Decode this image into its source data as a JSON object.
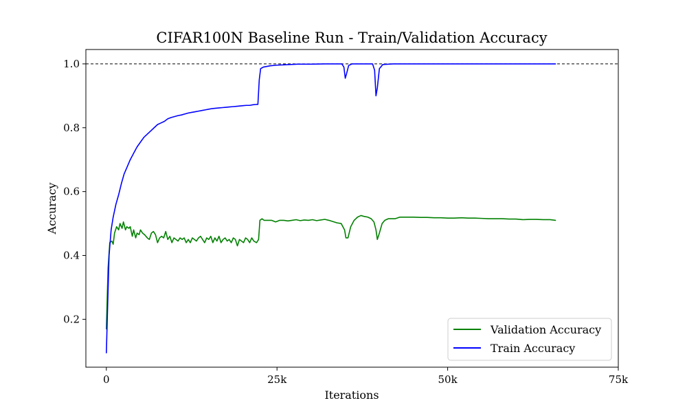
{
  "chart_data": {
    "type": "line",
    "title": "CIFAR100N Baseline Run - Train/Validation Accuracy",
    "xlabel": "Iterations",
    "ylabel": "Accuracy",
    "xlim": [
      -3000,
      75000
    ],
    "ylim": [
      0.05,
      1.045
    ],
    "x_ticks": [
      {
        "value": 0,
        "label": "0"
      },
      {
        "value": 25000,
        "label": "25k"
      },
      {
        "value": 50000,
        "label": "50k"
      },
      {
        "value": 75000,
        "label": "75k"
      }
    ],
    "y_ticks": [
      {
        "value": 0.2,
        "label": "0.2"
      },
      {
        "value": 0.4,
        "label": "0.4"
      },
      {
        "value": 0.6,
        "label": "0.6"
      },
      {
        "value": 0.8,
        "label": "0.8"
      },
      {
        "value": 1.0,
        "label": "1.0"
      }
    ],
    "grid": false,
    "reference_line": {
      "y": 1.0,
      "style": "dashed",
      "color": "#000000"
    },
    "legend": {
      "position": "lower-right"
    },
    "series": [
      {
        "name": "Validation Accuracy",
        "color": "#008000",
        "points": [
          [
            0,
            0.17
          ],
          [
            250,
            0.36
          ],
          [
            500,
            0.44
          ],
          [
            800,
            0.445
          ],
          [
            1000,
            0.435
          ],
          [
            1200,
            0.47
          ],
          [
            1500,
            0.49
          ],
          [
            1800,
            0.48
          ],
          [
            2000,
            0.5
          ],
          [
            2300,
            0.485
          ],
          [
            2500,
            0.505
          ],
          [
            2800,
            0.48
          ],
          [
            3000,
            0.49
          ],
          [
            3300,
            0.485
          ],
          [
            3500,
            0.49
          ],
          [
            3800,
            0.46
          ],
          [
            4000,
            0.48
          ],
          [
            4300,
            0.455
          ],
          [
            4500,
            0.47
          ],
          [
            4800,
            0.465
          ],
          [
            5000,
            0.48
          ],
          [
            5300,
            0.47
          ],
          [
            5600,
            0.465
          ],
          [
            6000,
            0.455
          ],
          [
            6300,
            0.45
          ],
          [
            6600,
            0.47
          ],
          [
            6900,
            0.475
          ],
          [
            7200,
            0.465
          ],
          [
            7500,
            0.44
          ],
          [
            7800,
            0.455
          ],
          [
            8100,
            0.46
          ],
          [
            8400,
            0.455
          ],
          [
            8700,
            0.475
          ],
          [
            9000,
            0.45
          ],
          [
            9300,
            0.46
          ],
          [
            9600,
            0.44
          ],
          [
            9900,
            0.455
          ],
          [
            10200,
            0.45
          ],
          [
            10500,
            0.445
          ],
          [
            10800,
            0.455
          ],
          [
            11100,
            0.45
          ],
          [
            11400,
            0.455
          ],
          [
            11700,
            0.44
          ],
          [
            12000,
            0.45
          ],
          [
            12300,
            0.44
          ],
          [
            12600,
            0.455
          ],
          [
            12900,
            0.45
          ],
          [
            13200,
            0.445
          ],
          [
            13500,
            0.455
          ],
          [
            13800,
            0.46
          ],
          [
            14100,
            0.45
          ],
          [
            14400,
            0.44
          ],
          [
            14700,
            0.455
          ],
          [
            15000,
            0.45
          ],
          [
            15300,
            0.46
          ],
          [
            15600,
            0.44
          ],
          [
            15900,
            0.455
          ],
          [
            16200,
            0.445
          ],
          [
            16500,
            0.46
          ],
          [
            16800,
            0.44
          ],
          [
            17100,
            0.45
          ],
          [
            17400,
            0.455
          ],
          [
            17700,
            0.445
          ],
          [
            18000,
            0.45
          ],
          [
            18300,
            0.44
          ],
          [
            18600,
            0.455
          ],
          [
            18900,
            0.45
          ],
          [
            19200,
            0.43
          ],
          [
            19500,
            0.45
          ],
          [
            19800,
            0.445
          ],
          [
            20100,
            0.44
          ],
          [
            20400,
            0.455
          ],
          [
            20700,
            0.45
          ],
          [
            21000,
            0.44
          ],
          [
            21300,
            0.455
          ],
          [
            21600,
            0.445
          ],
          [
            22000,
            0.44
          ],
          [
            22300,
            0.45
          ],
          [
            22500,
            0.51
          ],
          [
            22800,
            0.515
          ],
          [
            23100,
            0.51
          ],
          [
            23600,
            0.51
          ],
          [
            24200,
            0.51
          ],
          [
            24800,
            0.505
          ],
          [
            25400,
            0.51
          ],
          [
            26000,
            0.51
          ],
          [
            26600,
            0.508
          ],
          [
            27200,
            0.51
          ],
          [
            27800,
            0.512
          ],
          [
            28400,
            0.509
          ],
          [
            29000,
            0.511
          ],
          [
            29600,
            0.51
          ],
          [
            30200,
            0.512
          ],
          [
            30800,
            0.509
          ],
          [
            31400,
            0.511
          ],
          [
            32000,
            0.513
          ],
          [
            32600,
            0.51
          ],
          [
            33200,
            0.506
          ],
          [
            33800,
            0.502
          ],
          [
            34400,
            0.5
          ],
          [
            34900,
            0.48
          ],
          [
            35100,
            0.455
          ],
          [
            35400,
            0.455
          ],
          [
            35800,
            0.49
          ],
          [
            36300,
            0.51
          ],
          [
            36800,
            0.52
          ],
          [
            37300,
            0.525
          ],
          [
            37800,
            0.522
          ],
          [
            38300,
            0.52
          ],
          [
            38800,
            0.515
          ],
          [
            39200,
            0.505
          ],
          [
            39500,
            0.48
          ],
          [
            39700,
            0.45
          ],
          [
            40000,
            0.47
          ],
          [
            40400,
            0.5
          ],
          [
            40800,
            0.51
          ],
          [
            41300,
            0.515
          ],
          [
            41800,
            0.515
          ],
          [
            42300,
            0.515
          ],
          [
            43000,
            0.52
          ],
          [
            44000,
            0.52
          ],
          [
            45000,
            0.52
          ],
          [
            46000,
            0.519
          ],
          [
            47000,
            0.519
          ],
          [
            48000,
            0.518
          ],
          [
            49000,
            0.518
          ],
          [
            50000,
            0.517
          ],
          [
            51000,
            0.517
          ],
          [
            52000,
            0.518
          ],
          [
            53000,
            0.517
          ],
          [
            54000,
            0.517
          ],
          [
            55000,
            0.516
          ],
          [
            56000,
            0.515
          ],
          [
            57000,
            0.515
          ],
          [
            58000,
            0.515
          ],
          [
            59000,
            0.514
          ],
          [
            60000,
            0.514
          ],
          [
            61000,
            0.512
          ],
          [
            62000,
            0.513
          ],
          [
            63000,
            0.513
          ],
          [
            64000,
            0.512
          ],
          [
            65000,
            0.512
          ],
          [
            65800,
            0.51
          ]
        ]
      },
      {
        "name": "Train Accuracy",
        "color": "#0000ff",
        "points": [
          [
            0,
            0.095
          ],
          [
            200,
            0.25
          ],
          [
            400,
            0.4
          ],
          [
            700,
            0.48
          ],
          [
            1000,
            0.52
          ],
          [
            1400,
            0.56
          ],
          [
            1800,
            0.59
          ],
          [
            2200,
            0.625
          ],
          [
            2600,
            0.655
          ],
          [
            3000,
            0.675
          ],
          [
            3500,
            0.7
          ],
          [
            4000,
            0.72
          ],
          [
            4500,
            0.74
          ],
          [
            5000,
            0.755
          ],
          [
            5500,
            0.77
          ],
          [
            6000,
            0.78
          ],
          [
            6500,
            0.79
          ],
          [
            7000,
            0.8
          ],
          [
            7500,
            0.81
          ],
          [
            8000,
            0.815
          ],
          [
            8500,
            0.82
          ],
          [
            9000,
            0.828
          ],
          [
            9500,
            0.832
          ],
          [
            10000,
            0.835
          ],
          [
            10500,
            0.838
          ],
          [
            11000,
            0.84
          ],
          [
            11500,
            0.843
          ],
          [
            12000,
            0.846
          ],
          [
            12500,
            0.848
          ],
          [
            13000,
            0.85
          ],
          [
            13500,
            0.852
          ],
          [
            14000,
            0.854
          ],
          [
            14500,
            0.856
          ],
          [
            15000,
            0.858
          ],
          [
            15500,
            0.86
          ],
          [
            16000,
            0.861
          ],
          [
            16500,
            0.862
          ],
          [
            17000,
            0.863
          ],
          [
            17500,
            0.864
          ],
          [
            18000,
            0.865
          ],
          [
            18500,
            0.866
          ],
          [
            19000,
            0.867
          ],
          [
            19500,
            0.868
          ],
          [
            20000,
            0.869
          ],
          [
            20500,
            0.87
          ],
          [
            21000,
            0.87
          ],
          [
            21500,
            0.872
          ],
          [
            22000,
            0.873
          ],
          [
            22200,
            0.873
          ],
          [
            22400,
            0.95
          ],
          [
            22600,
            0.985
          ],
          [
            23000,
            0.99
          ],
          [
            24000,
            0.994
          ],
          [
            25000,
            0.996
          ],
          [
            26000,
            0.997
          ],
          [
            27000,
            0.998
          ],
          [
            28000,
            0.999
          ],
          [
            30000,
            0.999
          ],
          [
            32000,
            1.0
          ],
          [
            34500,
            1.0
          ],
          [
            34800,
            0.99
          ],
          [
            35000,
            0.955
          ],
          [
            35200,
            0.97
          ],
          [
            35500,
            0.995
          ],
          [
            36000,
            1.0
          ],
          [
            39000,
            1.0
          ],
          [
            39300,
            0.98
          ],
          [
            39500,
            0.9
          ],
          [
            39700,
            0.925
          ],
          [
            40000,
            0.985
          ],
          [
            40500,
            0.998
          ],
          [
            42000,
            1.0
          ],
          [
            50000,
            1.0
          ],
          [
            60000,
            1.0
          ],
          [
            65800,
            1.0
          ]
        ]
      }
    ]
  }
}
